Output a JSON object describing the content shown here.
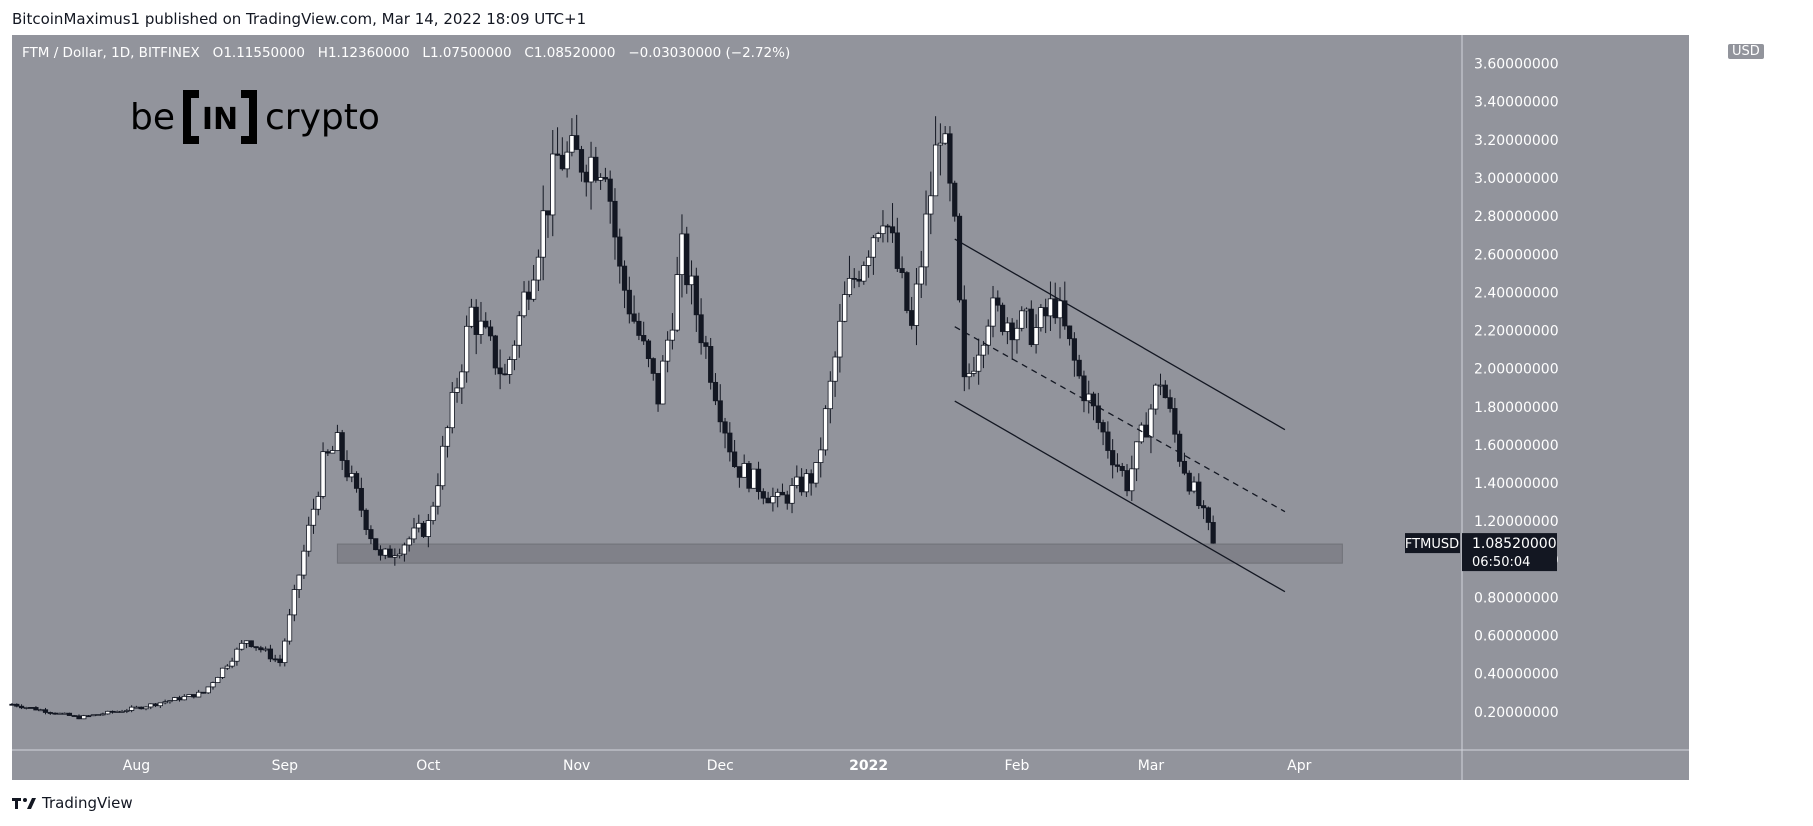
{
  "header": {
    "published_by": "BitcoinMaximus1 published on TradingView.com, Mar 14, 2022 18:09 UTC+1"
  },
  "legend": {
    "symbol": "FTM / Dollar, 1D, BITFINEX",
    "o_label": "O",
    "o_value": "1.11550000",
    "h_label": "H",
    "h_value": "1.12360000",
    "l_label": "L",
    "l_value": "1.07500000",
    "c_label": "C",
    "c_value": "1.08520000",
    "change": "−0.03030000 (−2.72%)"
  },
  "logo": {
    "left": "be",
    "mid": "IN",
    "right": "crypto"
  },
  "footer": {
    "brand": "TradingView"
  },
  "colors": {
    "chart_bg": "#92949c",
    "up_candle": "#ffffff",
    "down_candle": "#131722",
    "support_zone": "#7c7e86",
    "channel_line": "#131722"
  },
  "chart_data": {
    "type": "candlestick",
    "title": "FTM / Dollar, 1D, BITFINEX",
    "currency": "USD",
    "ylim": [
      0,
      3.75
    ],
    "y_ticks": [
      "3.60000000",
      "3.40000000",
      "3.20000000",
      "3.00000000",
      "2.80000000",
      "2.60000000",
      "2.40000000",
      "2.20000000",
      "2.00000000",
      "1.80000000",
      "1.60000000",
      "1.40000000",
      "1.20000000",
      "1.00000000",
      "0.80000000",
      "0.60000000",
      "0.40000000",
      "0.20000000"
    ],
    "y_tick_values": [
      3.6,
      3.4,
      3.2,
      3.0,
      2.8,
      2.6,
      2.4,
      2.2,
      2.0,
      1.8,
      1.6,
      1.4,
      1.2,
      1.0,
      0.8,
      0.6,
      0.4,
      0.2
    ],
    "x_ticks": [
      "Aug",
      "Sep",
      "Oct",
      "Nov",
      "Dec",
      "2022",
      "Feb",
      "Mar",
      "Apr"
    ],
    "x_tick_dates": [
      "2021-08-01",
      "2021-09-01",
      "2021-10-01",
      "2021-11-01",
      "2021-12-01",
      "2022-01-01",
      "2022-02-01",
      "2022-03-01",
      "2022-04-01"
    ],
    "x_range": [
      "2021-07-06",
      "2022-05-05"
    ],
    "last_price_label": "FTMUSD",
    "last_price": "1.08520000",
    "countdown": "06:50:04",
    "support_zone": {
      "from_date": "2021-09-12",
      "to_date": "2022-04-10",
      "low": 0.98,
      "high": 1.08
    },
    "channel_lines": [
      {
        "role": "resistance",
        "start": [
          "2022-01-19",
          2.68
        ],
        "end": [
          "2022-03-29",
          1.68
        ]
      },
      {
        "role": "midline",
        "dashed": true,
        "start": [
          "2022-01-19",
          2.22
        ],
        "end": [
          "2022-03-29",
          1.25
        ]
      },
      {
        "role": "support",
        "start": [
          "2022-01-19",
          1.83
        ],
        "end": [
          "2022-03-29",
          0.83
        ]
      }
    ],
    "key_points": [
      {
        "date": "2021-07-06",
        "close": 0.24
      },
      {
        "date": "2021-07-20",
        "close": 0.17
      },
      {
        "date": "2021-08-01",
        "close": 0.22
      },
      {
        "date": "2021-08-15",
        "close": 0.3
      },
      {
        "date": "2021-08-24",
        "close": 0.58
      },
      {
        "date": "2021-08-31",
        "close": 0.46
      },
      {
        "date": "2021-09-09",
        "close": 1.5
      },
      {
        "date": "2021-09-12",
        "close": 1.6
      },
      {
        "date": "2021-09-21",
        "close": 1.0
      },
      {
        "date": "2021-10-01",
        "close": 1.18
      },
      {
        "date": "2021-10-10",
        "close": 2.3
      },
      {
        "date": "2021-10-17",
        "close": 1.95
      },
      {
        "date": "2021-10-28",
        "close": 3.1
      },
      {
        "date": "2021-11-07",
        "close": 3.1
      },
      {
        "date": "2021-11-10",
        "close": 2.5
      },
      {
        "date": "2021-11-18",
        "close": 1.85
      },
      {
        "date": "2021-11-23",
        "close": 2.6
      },
      {
        "date": "2021-12-04",
        "close": 1.5
      },
      {
        "date": "2021-12-13",
        "close": 1.3
      },
      {
        "date": "2021-12-21",
        "close": 1.45
      },
      {
        "date": "2021-12-27",
        "close": 2.35
      },
      {
        "date": "2022-01-04",
        "close": 2.85
      },
      {
        "date": "2022-01-10",
        "close": 2.2
      },
      {
        "date": "2022-01-16",
        "close": 3.3
      },
      {
        "date": "2022-01-19",
        "close": 2.7
      },
      {
        "date": "2022-01-21",
        "close": 1.9
      },
      {
        "date": "2022-01-26",
        "close": 2.3
      },
      {
        "date": "2022-02-05",
        "close": 2.2
      },
      {
        "date": "2022-02-09",
        "close": 2.35
      },
      {
        "date": "2022-02-14",
        "close": 1.95
      },
      {
        "date": "2022-02-20",
        "close": 1.6
      },
      {
        "date": "2022-02-24",
        "close": 1.4
      },
      {
        "date": "2022-03-03",
        "close": 1.95
      },
      {
        "date": "2022-03-07",
        "close": 1.55
      },
      {
        "date": "2022-03-14",
        "close": 1.085
      }
    ]
  }
}
